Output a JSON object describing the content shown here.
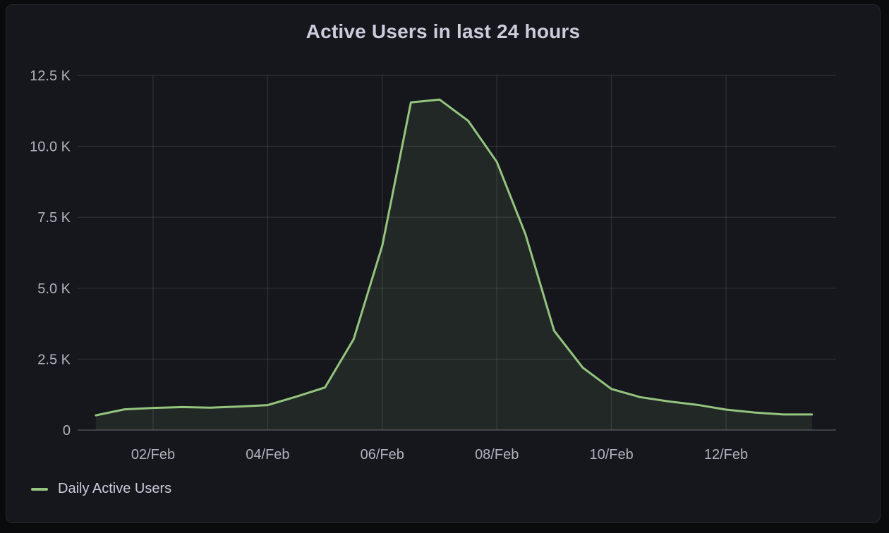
{
  "panel": {
    "title": "Active Users in last 24 hours"
  },
  "legend": {
    "items": [
      {
        "label": "Daily Active Users",
        "color": "#94C57E"
      }
    ]
  },
  "colors": {
    "page_bg": "#0A0B0D",
    "panel_bg": "#16171C",
    "panel_border": "#25272D",
    "grid": "rgba(204,204,220,0.12)",
    "axis_line": "rgba(204,204,220,0.22)",
    "title_text": "#CCCCDC",
    "axis_text": "rgba(204,204,220,0.85)",
    "series_line": "#94C57E",
    "series_fill": "rgba(148,197,126,0.10)"
  },
  "chart_data": {
    "type": "area",
    "title": "Active Users in last 24 hours",
    "xlabel": "",
    "ylabel": "",
    "x_unit": "day of February",
    "x": [
      1,
      1.5,
      2,
      2.5,
      3,
      3.5,
      4,
      4.5,
      5,
      5.5,
      6,
      6.5,
      7,
      7.5,
      8,
      8.5,
      9,
      9.5,
      10,
      10.5,
      11,
      11.5,
      12,
      12.5,
      13,
      13.5
    ],
    "series": [
      {
        "name": "Daily Active Users",
        "color": "#94C57E",
        "values": [
          520,
          730,
          780,
          810,
          790,
          830,
          880,
          1180,
          1500,
          3200,
          6500,
          11550,
          11650,
          10900,
          9450,
          6900,
          3500,
          2200,
          1450,
          1160,
          1010,
          890,
          720,
          620,
          550,
          550
        ]
      }
    ],
    "x_ticks": [
      {
        "x": 2,
        "label": "02/Feb"
      },
      {
        "x": 4,
        "label": "04/Feb"
      },
      {
        "x": 6,
        "label": "06/Feb"
      },
      {
        "x": 8,
        "label": "08/Feb"
      },
      {
        "x": 10,
        "label": "10/Feb"
      },
      {
        "x": 12,
        "label": "12/Feb"
      }
    ],
    "y_ticks": [
      {
        "value": 0,
        "label": "0"
      },
      {
        "value": 2500,
        "label": "2.5 K"
      },
      {
        "value": 5000,
        "label": "5.0 K"
      },
      {
        "value": 7500,
        "label": "7.5 K"
      },
      {
        "value": 10000,
        "label": "10.0 K"
      },
      {
        "value": 12500,
        "label": "12.5 K"
      }
    ],
    "ylim": [
      0,
      12500
    ],
    "xlim": [
      0.68,
      13.93
    ],
    "grid": true,
    "legend_position": "bottom-left"
  }
}
